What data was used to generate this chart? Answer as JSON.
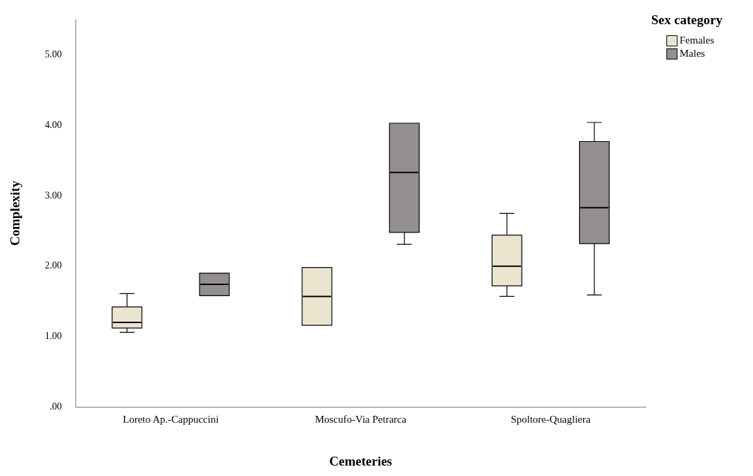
{
  "chart_data": {
    "type": "box",
    "xlabel": "Cemeteries",
    "ylabel": "Complexity",
    "legend_title": "Sex category",
    "categories": [
      "Loreto Ap.-Cappuccini",
      "Moscufo-Via Petrarca",
      "Spoltore-Quagliera"
    ],
    "series": [
      {
        "name": "Females",
        "color": "#ebe4cf",
        "boxes": [
          {
            "low": 1.06,
            "q1": 1.12,
            "median": 1.2,
            "q3": 1.42,
            "high": 1.61
          },
          {
            "low": 1.16,
            "q1": 1.16,
            "median": 1.57,
            "q3": 1.98,
            "high": 1.98
          },
          {
            "low": 1.57,
            "q1": 1.72,
            "median": 2.0,
            "q3": 2.44,
            "high": 2.75
          }
        ]
      },
      {
        "name": "Males",
        "color": "#938f8f",
        "boxes": [
          {
            "low": 1.58,
            "q1": 1.58,
            "median": 1.74,
            "q3": 1.9,
            "high": 1.9
          },
          {
            "low": 2.31,
            "q1": 2.48,
            "median": 3.33,
            "q3": 4.03,
            "high": 4.03
          },
          {
            "low": 1.59,
            "q1": 2.32,
            "median": 2.83,
            "q3": 3.77,
            "high": 4.04
          }
        ]
      }
    ],
    "ylim": [
      0,
      5.5
    ],
    "yticks": [
      {
        "value": 0,
        "label": ".00"
      },
      {
        "value": 1,
        "label": "1.00"
      },
      {
        "value": 2,
        "label": "2.00"
      },
      {
        "value": 3,
        "label": "3.00"
      },
      {
        "value": 4,
        "label": "4.00"
      },
      {
        "value": 5,
        "label": "5.00"
      }
    ],
    "grid": false,
    "legend": "top right"
  }
}
